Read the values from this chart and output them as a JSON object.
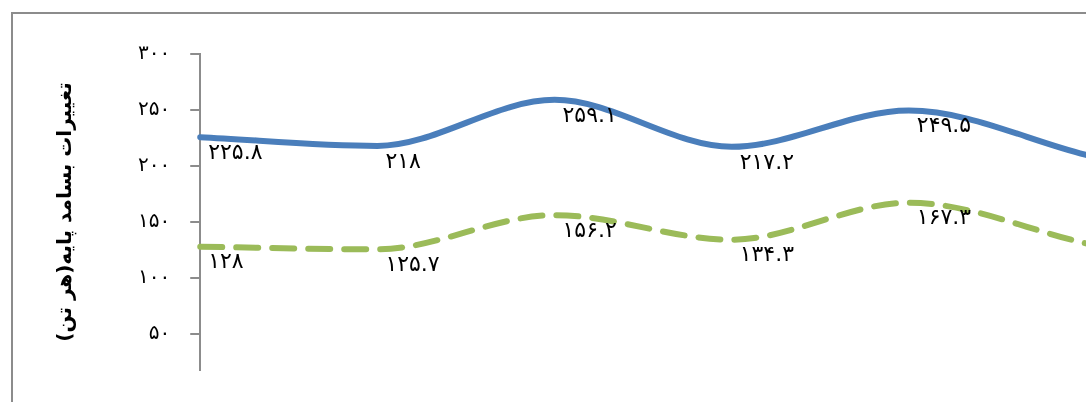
{
  "chart_data": {
    "type": "line",
    "ylabel": "تغییرات بسامد پایه(هر تن)",
    "categories": [
      null,
      null,
      null,
      null,
      null,
      null
    ],
    "series": [
      {
        "color": "#4a7ebb",
        "line_style": "solid",
        "values": [
          225.8,
          218,
          259.1,
          217.2,
          249.5,
          210
        ],
        "value_labels": [
          "۲۲۵.۸",
          "۲۱۸",
          "۲۵۹.۱",
          "۲۱۷.۲",
          "۲۴۹.۵",
          null
        ]
      },
      {
        "color": "#9bbb59",
        "line_style": "dashed",
        "values": [
          128,
          125.7,
          156.2,
          134.3,
          167.3,
          131
        ],
        "value_labels": [
          "۱۲۸",
          "۱۲۵.۷",
          "۱۵۶.۲",
          "۱۳۴.۳",
          "۱۶۷.۳",
          null
        ]
      }
    ],
    "ylim": [
      18,
      300
    ],
    "yticks": [
      {
        "value": 50,
        "label": "۵۰"
      },
      {
        "value": 100,
        "label": "۱۰۰"
      },
      {
        "value": 150,
        "label": "۱۵۰"
      },
      {
        "value": 200,
        "label": "۲۰۰"
      },
      {
        "value": 250,
        "label": "۲۵۰"
      },
      {
        "value": 300,
        "label": "۳۰۰"
      }
    ],
    "grid": false,
    "legend": false,
    "marker": "none",
    "tick_labels": "y"
  }
}
